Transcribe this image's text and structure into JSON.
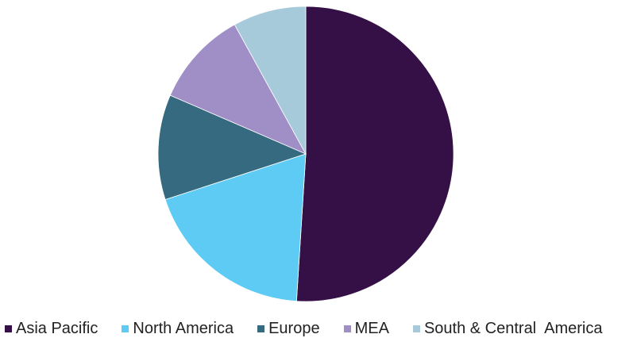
{
  "chart_data": {
    "type": "pie",
    "title": "",
    "categories": [
      "Asia Pacific",
      "North America",
      "Europe",
      "MEA",
      "South & Central  America"
    ],
    "values": [
      51,
      19,
      11.5,
      10.5,
      8
    ],
    "colors": [
      "#341046",
      "#5ecbf5",
      "#356a80",
      "#a08ec6",
      "#a7cadb"
    ],
    "start_angle_deg": 0,
    "direction": "clockwise",
    "legend_position": "bottom"
  }
}
